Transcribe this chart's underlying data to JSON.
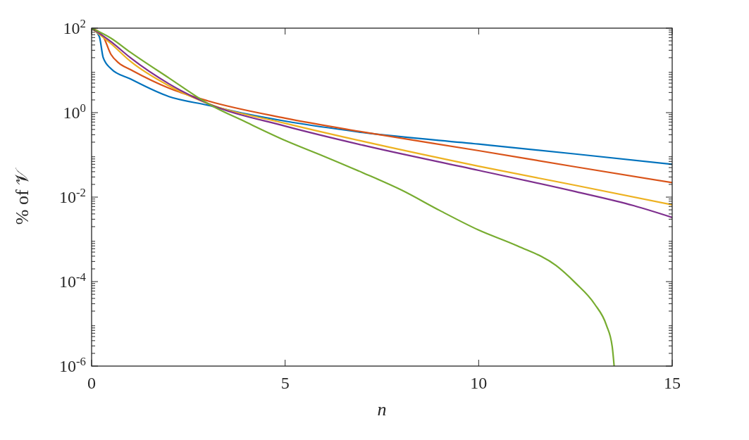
{
  "chart_data": {
    "type": "line",
    "xlabel": "n",
    "ylabel": "% of 𝒱",
    "log": "y",
    "grid": false,
    "line_style": "solid",
    "marker": "none",
    "xlim": [
      0,
      15
    ],
    "xticks": [
      0,
      5,
      10,
      15
    ],
    "ylim": [
      1e-06,
      100
    ],
    "yticks": [
      {
        "value": 1e-06,
        "label": "10$^{-6}$"
      },
      {
        "value": 0.0001,
        "label": "10$^{-4}$"
      },
      {
        "value": 0.01,
        "label": "10$^{-2}$"
      },
      {
        "value": 1,
        "label": "10$^{0}$"
      },
      {
        "value": 100,
        "label": "10$^{2}$"
      }
    ],
    "series": [
      {
        "color": "#0072bd",
        "x": [
          0,
          0.2,
          0.3,
          0.5,
          1,
          2,
          3,
          4,
          5,
          7,
          10,
          12.5,
          15
        ],
        "values": [
          100,
          63,
          20,
          11,
          6.3,
          2.4,
          1.5,
          0.93,
          0.63,
          0.34,
          0.18,
          0.105,
          0.06
        ]
      },
      {
        "color": "#d95319",
        "x": [
          0,
          0.3,
          0.5,
          0.7,
          1,
          2,
          3,
          5,
          7,
          10,
          12.5,
          15
        ],
        "values": [
          100,
          63,
          24,
          15,
          10.5,
          3.8,
          1.9,
          0.74,
          0.35,
          0.126,
          0.052,
          0.022
        ]
      },
      {
        "color": "#edb120",
        "x": [
          0,
          0.5,
          1,
          2,
          3,
          5,
          7,
          10,
          12.5,
          15
        ],
        "values": [
          100,
          43,
          16.5,
          4.3,
          1.65,
          0.56,
          0.21,
          0.054,
          0.019,
          0.0066
        ]
      },
      {
        "color": "#7e2f8e",
        "x": [
          0,
          0.5,
          1,
          2,
          3,
          5,
          7,
          10,
          12.5,
          14,
          15
        ],
        "values": [
          100,
          48,
          20,
          4.8,
          1.65,
          0.48,
          0.17,
          0.043,
          0.0135,
          0.0063,
          0.0033
        ]
      },
      {
        "color": "#77ac30",
        "x": [
          0,
          0.5,
          1,
          2,
          3,
          4,
          5,
          6,
          7,
          8,
          9,
          10,
          11,
          12,
          12.5,
          13,
          13.3,
          13.45,
          13.5
        ],
        "values": [
          100,
          58,
          27,
          6.6,
          1.65,
          0.59,
          0.22,
          0.093,
          0.038,
          0.0148,
          0.0048,
          0.00166,
          0.0007,
          0.00024,
          9.3e-05,
          2.9e-05,
          9.3e-06,
          2.9e-06,
          1e-06
        ]
      }
    ]
  }
}
